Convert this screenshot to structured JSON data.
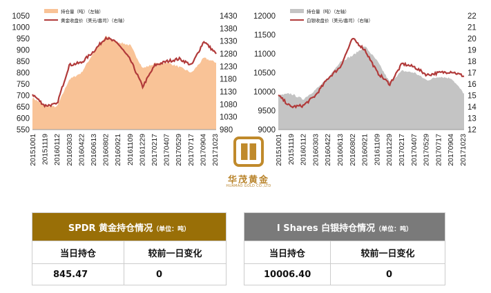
{
  "charts": [
    {
      "legend": [
        "持仓量（吨）（左轴）",
        "黄金收盘价（美元/盎司）（右轴）"
      ],
      "left_axis": {
        "min": 550,
        "max": 1050,
        "step": 50,
        "ticks": [
          "550",
          "600",
          "650",
          "700",
          "750",
          "800",
          "850",
          "900",
          "950",
          "1000",
          "1050"
        ]
      },
      "right_axis": {
        "min": 980,
        "max": 1430,
        "step": 50,
        "ticks": [
          "980",
          "1030",
          "1080",
          "1130",
          "1180",
          "1230",
          "1280",
          "1330",
          "1380",
          "1430"
        ]
      },
      "colors": {
        "area": "#f9c397",
        "line": "#b13a3a"
      }
    },
    {
      "legend": [
        "持仓量（吨）（左轴）",
        "白银收盘价（美元/盎司）（右轴）"
      ],
      "left_axis": {
        "min": 9000,
        "max": 12000,
        "step": 500,
        "ticks": [
          "9000",
          "9500",
          "10000",
          "10500",
          "11000",
          "11500",
          "12000"
        ]
      },
      "right_axis": {
        "min": 12,
        "max": 22,
        "step": 1,
        "ticks": [
          "12",
          "13",
          "14",
          "15",
          "16",
          "17",
          "18",
          "19",
          "20",
          "21",
          "22"
        ]
      },
      "colors": {
        "area": "#c4c4c4",
        "line": "#b13a3a"
      }
    }
  ],
  "x_ticks": [
    "20151001",
    "20151119",
    "20160112",
    "20160303",
    "20160422",
    "20160613",
    "20160802",
    "20160921",
    "20161109",
    "20161229",
    "20170217",
    "20170407",
    "20170529",
    "20170717",
    "20170904",
    "20171023"
  ],
  "chart_data": [
    {
      "type": "area",
      "x": [
        "20151001",
        "20151119",
        "20160112",
        "20160303",
        "20160422",
        "20160613",
        "20160802",
        "20160921",
        "20161109",
        "20161229",
        "20170217",
        "20170407",
        "20170529",
        "20170717",
        "20170904",
        "20171023"
      ],
      "series": [
        {
          "name": "持仓量（吨）（左轴）",
          "axis": "left",
          "values": [
            690,
            655,
            650,
            770,
            800,
            890,
            960,
            935,
            920,
            820,
            840,
            845,
            825,
            800,
            865,
            845
          ]
        },
        {
          "name": "黄金收盘价（美元/盎司）（右轴）",
          "axis": "right",
          "values": [
            1120,
            1075,
            1080,
            1235,
            1245,
            1290,
            1345,
            1320,
            1255,
            1150,
            1235,
            1250,
            1260,
            1235,
            1330,
            1280
          ]
        }
      ]
    },
    {
      "type": "area",
      "x": [
        "20151001",
        "20151119",
        "20160112",
        "20160303",
        "20160422",
        "20160613",
        "20160802",
        "20160921",
        "20161109",
        "20161229",
        "20170217",
        "20170407",
        "20170529",
        "20170717",
        "20170904",
        "20171023"
      ],
      "series": [
        {
          "name": "持仓量（吨）（左轴）",
          "axis": "left",
          "values": [
            9900,
            9950,
            9800,
            10050,
            10350,
            10800,
            10950,
            11200,
            10800,
            10250,
            10550,
            10500,
            10300,
            10400,
            10350,
            9950
          ]
        },
        {
          "name": "白银收盘价（美元/盎司）（右轴）",
          "axis": "right",
          "values": [
            15.0,
            14.0,
            14.1,
            15.0,
            16.5,
            17.5,
            20.0,
            19.0,
            17.0,
            16.0,
            17.8,
            17.5,
            16.8,
            17.0,
            17.1,
            16.7
          ]
        }
      ]
    }
  ],
  "logo": {
    "name": "华茂黄金",
    "sub": "HUAMAO GOLD CO.,LTD"
  },
  "tables": [
    {
      "title": "SPDR 黄金持仓情况",
      "unit": "（单位：吨）",
      "col1": "当日持仓",
      "col2": "较前一日变化",
      "val1": "845.47",
      "val2": "0",
      "color": "#996f07"
    },
    {
      "title": "I Shares 白银持仓情况",
      "unit": "（单位：吨）",
      "col1": "当日持仓",
      "col2": "较前一日变化",
      "val1": "10006.40",
      "val2": "0",
      "color": "#7a7a7a"
    }
  ]
}
